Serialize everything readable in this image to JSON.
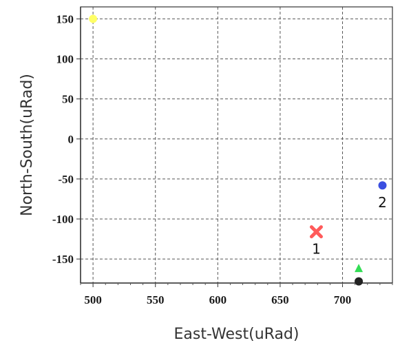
{
  "chart_data": {
    "type": "scatter",
    "xlabel": "East-West(uRad)",
    "ylabel": "North-South(uRad)",
    "xlim": [
      490,
      740
    ],
    "ylim": [
      -180,
      165
    ],
    "xticks": [
      "500",
      "550",
      "600",
      "650",
      "700"
    ],
    "xtick_values": [
      500,
      550,
      600,
      650,
      700
    ],
    "yticks": [
      "150",
      "100",
      "50",
      "0",
      "-50",
      "-100",
      "-150"
    ],
    "ytick_values": [
      150,
      100,
      50,
      0,
      -50,
      -100,
      -150
    ],
    "grid": true,
    "points": [
      {
        "label": "",
        "x": 500,
        "y": 150,
        "marker": "circle",
        "color": "#ffff66"
      },
      {
        "label": "1",
        "x": 679,
        "y": -116,
        "marker": "x",
        "color": "#ff5a5a"
      },
      {
        "label": "2",
        "x": 732,
        "y": -58,
        "marker": "circle",
        "color": "#3b4fe0"
      },
      {
        "label": "",
        "x": 713,
        "y": -162,
        "marker": "triangle",
        "color": "#33dd55"
      },
      {
        "label": "",
        "x": 713,
        "y": -178,
        "marker": "circle",
        "color": "#222222"
      }
    ]
  }
}
